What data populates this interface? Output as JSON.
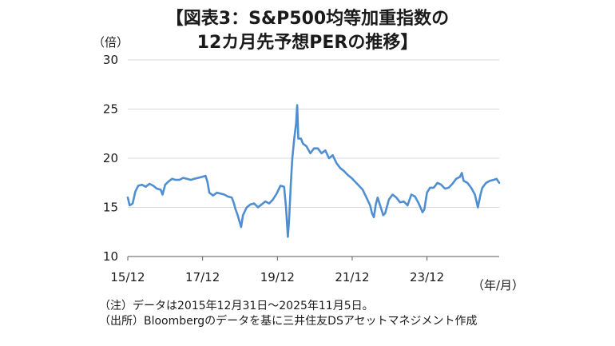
{
  "header": {
    "title_line1": "【図表3：S&P500均等加重指数の",
    "title_line2": "12カ月先予想PERの推移】"
  },
  "notes": {
    "note1": "（注）データは2015年12月31日～2025年11月5日。",
    "note2": "（出所）Bloombergのデータを基に三井住友DSアセットマネジメント作成"
  },
  "chart_data": {
    "type": "line",
    "title": "S&P500均等加重指数の12カ月先予想PER",
    "ylabel": "（倍）",
    "xlabel": "（年/月）",
    "ylim": [
      10,
      30
    ],
    "yticks": [
      10,
      15,
      20,
      25,
      30
    ],
    "xlim": [
      2015.92,
      2025.85
    ],
    "xticks": [
      {
        "label": "15/12",
        "value": 2015.92
      },
      {
        "label": "17/12",
        "value": 2017.92
      },
      {
        "label": "19/12",
        "value": 2019.92
      },
      {
        "label": "21/12",
        "value": 2021.92
      },
      {
        "label": "23/12",
        "value": 2023.92
      }
    ],
    "grid": true,
    "color": "#4f8fd1",
    "series": [
      {
        "name": "12カ月先予想PER",
        "points": [
          [
            2015.92,
            16.0
          ],
          [
            2015.97,
            15.2
          ],
          [
            2016.05,
            15.4
          ],
          [
            2016.12,
            16.6
          ],
          [
            2016.2,
            17.2
          ],
          [
            2016.3,
            17.3
          ],
          [
            2016.4,
            17.1
          ],
          [
            2016.5,
            17.4
          ],
          [
            2016.6,
            17.2
          ],
          [
            2016.7,
            16.9
          ],
          [
            2016.8,
            16.8
          ],
          [
            2016.85,
            16.3
          ],
          [
            2016.92,
            17.3
          ],
          [
            2017.0,
            17.6
          ],
          [
            2017.1,
            17.9
          ],
          [
            2017.2,
            17.8
          ],
          [
            2017.3,
            17.8
          ],
          [
            2017.4,
            18.0
          ],
          [
            2017.5,
            17.9
          ],
          [
            2017.6,
            17.8
          ],
          [
            2017.7,
            17.9
          ],
          [
            2017.8,
            18.0
          ],
          [
            2017.9,
            18.1
          ],
          [
            2018.0,
            18.2
          ],
          [
            2018.05,
            17.6
          ],
          [
            2018.1,
            16.5
          ],
          [
            2018.2,
            16.2
          ],
          [
            2018.3,
            16.5
          ],
          [
            2018.4,
            16.4
          ],
          [
            2018.5,
            16.3
          ],
          [
            2018.6,
            16.1
          ],
          [
            2018.7,
            16.0
          ],
          [
            2018.75,
            15.5
          ],
          [
            2018.8,
            14.8
          ],
          [
            2018.85,
            14.3
          ],
          [
            2018.95,
            13.0
          ],
          [
            2019.0,
            14.2
          ],
          [
            2019.1,
            15.0
          ],
          [
            2019.2,
            15.3
          ],
          [
            2019.3,
            15.4
          ],
          [
            2019.4,
            15.0
          ],
          [
            2019.5,
            15.3
          ],
          [
            2019.6,
            15.6
          ],
          [
            2019.7,
            15.4
          ],
          [
            2019.8,
            15.8
          ],
          [
            2019.9,
            16.4
          ],
          [
            2020.0,
            17.2
          ],
          [
            2020.1,
            17.1
          ],
          [
            2020.15,
            15.0
          ],
          [
            2020.2,
            12.0
          ],
          [
            2020.23,
            13.5
          ],
          [
            2020.28,
            17.5
          ],
          [
            2020.32,
            20.0
          ],
          [
            2020.37,
            22.0
          ],
          [
            2020.42,
            23.5
          ],
          [
            2020.45,
            25.4
          ],
          [
            2020.48,
            22.0
          ],
          [
            2020.55,
            22.0
          ],
          [
            2020.6,
            21.5
          ],
          [
            2020.7,
            21.2
          ],
          [
            2020.8,
            20.5
          ],
          [
            2020.9,
            21.0
          ],
          [
            2021.0,
            21.0
          ],
          [
            2021.1,
            20.5
          ],
          [
            2021.2,
            20.8
          ],
          [
            2021.3,
            20.0
          ],
          [
            2021.4,
            20.3
          ],
          [
            2021.5,
            19.5
          ],
          [
            2021.6,
            19.0
          ],
          [
            2021.7,
            18.7
          ],
          [
            2021.8,
            18.3
          ],
          [
            2021.9,
            18.0
          ],
          [
            2022.0,
            17.6
          ],
          [
            2022.1,
            17.2
          ],
          [
            2022.2,
            16.8
          ],
          [
            2022.3,
            16.0
          ],
          [
            2022.4,
            15.2
          ],
          [
            2022.45,
            14.4
          ],
          [
            2022.5,
            14.0
          ],
          [
            2022.55,
            15.3
          ],
          [
            2022.6,
            16.0
          ],
          [
            2022.7,
            14.8
          ],
          [
            2022.75,
            14.2
          ],
          [
            2022.8,
            14.4
          ],
          [
            2022.9,
            15.8
          ],
          [
            2023.0,
            16.3
          ],
          [
            2023.1,
            16.0
          ],
          [
            2023.2,
            15.5
          ],
          [
            2023.3,
            15.6
          ],
          [
            2023.4,
            15.2
          ],
          [
            2023.5,
            16.3
          ],
          [
            2023.6,
            16.1
          ],
          [
            2023.7,
            15.4
          ],
          [
            2023.8,
            14.5
          ],
          [
            2023.85,
            14.8
          ],
          [
            2023.92,
            16.5
          ],
          [
            2024.0,
            17.0
          ],
          [
            2024.1,
            17.0
          ],
          [
            2024.2,
            17.5
          ],
          [
            2024.3,
            17.3
          ],
          [
            2024.4,
            16.9
          ],
          [
            2024.5,
            17.0
          ],
          [
            2024.6,
            17.4
          ],
          [
            2024.7,
            17.9
          ],
          [
            2024.8,
            18.1
          ],
          [
            2024.85,
            18.5
          ],
          [
            2024.9,
            17.7
          ],
          [
            2025.0,
            17.5
          ],
          [
            2025.1,
            17.0
          ],
          [
            2025.2,
            16.3
          ],
          [
            2025.25,
            15.5
          ],
          [
            2025.28,
            15.0
          ],
          [
            2025.35,
            16.3
          ],
          [
            2025.4,
            17.0
          ],
          [
            2025.5,
            17.5
          ],
          [
            2025.6,
            17.7
          ],
          [
            2025.7,
            17.8
          ],
          [
            2025.78,
            17.9
          ],
          [
            2025.85,
            17.5
          ]
        ]
      }
    ]
  }
}
